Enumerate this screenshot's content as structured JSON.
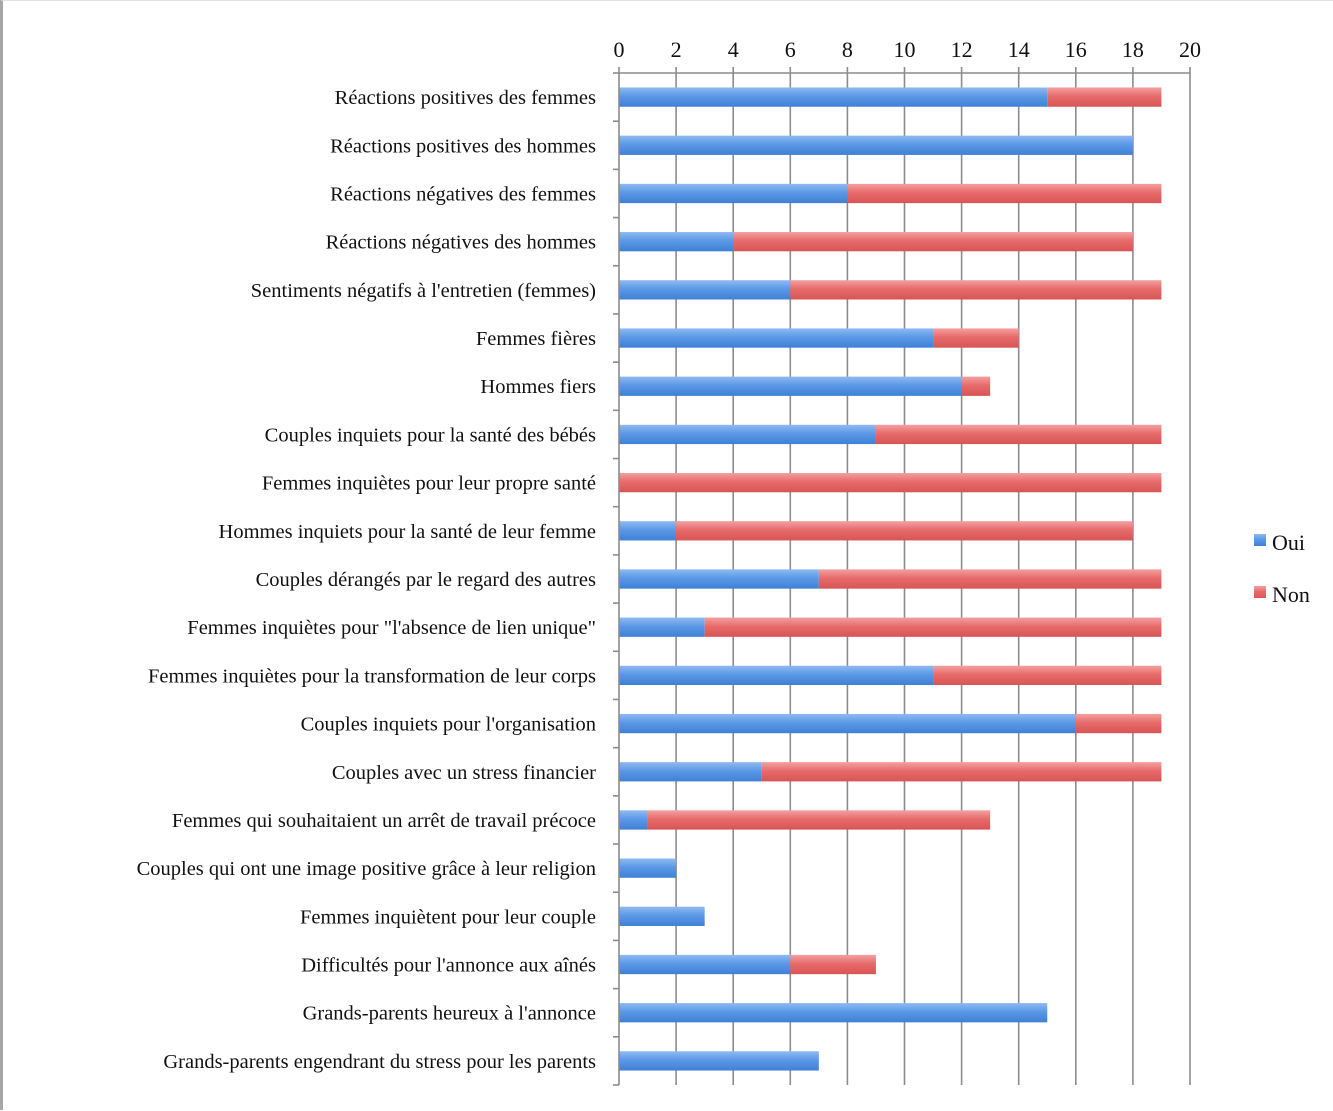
{
  "chart_data": {
    "type": "bar",
    "orientation": "horizontal",
    "stacked": true,
    "title": "",
    "xlabel": "",
    "ylabel": "",
    "xlim": [
      0,
      20
    ],
    "x_ticks": [
      0,
      2,
      4,
      6,
      8,
      10,
      12,
      14,
      16,
      18,
      20
    ],
    "x_axis_position": "top",
    "grid": {
      "vertical": true,
      "horizontal": false
    },
    "legend": {
      "position": "right"
    },
    "categories": [
      "Réactions positives des femmes",
      "Réactions positives des hommes",
      "Réactions négatives des femmes",
      "Réactions négatives des hommes",
      "Sentiments négatifs à l'entretien (femmes)",
      "Femmes fières",
      "Hommes fiers",
      "Couples inquiets pour la santé des bébés",
      "Femmes inquiètes pour leur propre santé",
      "Hommes inquiets pour la santé de leur femme",
      "Couples dérangés par le regard des autres",
      "Femmes inquiètes pour \"l'absence de lien unique\"",
      "Femmes inquiètes pour la transformation de leur corps",
      "Couples inquiets pour l'organisation",
      "Couples avec un stress financier",
      "Femmes qui souhaitaient un arrêt de travail précoce",
      "Couples qui ont une image positive grâce à leur religion",
      "Femmes inquiètent pour leur couple",
      "Difficultés pour l'annonce aux aînés",
      "Grands-parents heureux à l'annonce",
      "Grands-parents engendrant du stress pour les parents"
    ],
    "series": [
      {
        "name": "Oui",
        "color": "#4a8de0",
        "values": [
          15,
          18,
          8,
          4,
          6,
          11,
          12,
          9,
          0,
          2,
          7,
          3,
          11,
          16,
          5,
          1,
          2,
          3,
          6,
          15,
          7
        ]
      },
      {
        "name": "Non",
        "color": "#e35f5f",
        "values": [
          4,
          0,
          11,
          14,
          13,
          3,
          1,
          10,
          19,
          16,
          12,
          16,
          8,
          3,
          14,
          12,
          0,
          0,
          3,
          0,
          0
        ]
      }
    ]
  }
}
